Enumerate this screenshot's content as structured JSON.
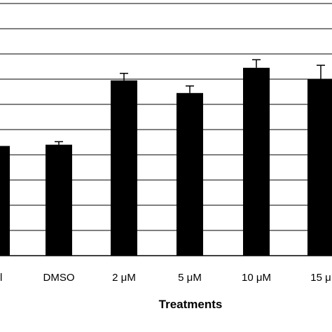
{
  "chart_data": {
    "type": "bar",
    "title": "",
    "xlabel": "Treatments",
    "ylabel": "",
    "categories": [
      "rol",
      "DMSO",
      "2 μM",
      "5 μM",
      "10 μM",
      "15 μ"
    ],
    "values": [
      4.35,
      4.4,
      6.95,
      6.45,
      7.45,
      7.0
    ],
    "errors": [
      0.0,
      0.12,
      0.28,
      0.28,
      0.32,
      0.55
    ],
    "ylim": [
      0,
      10
    ],
    "grid": true,
    "bar_color": "#000000",
    "grid_color": "#000000"
  }
}
